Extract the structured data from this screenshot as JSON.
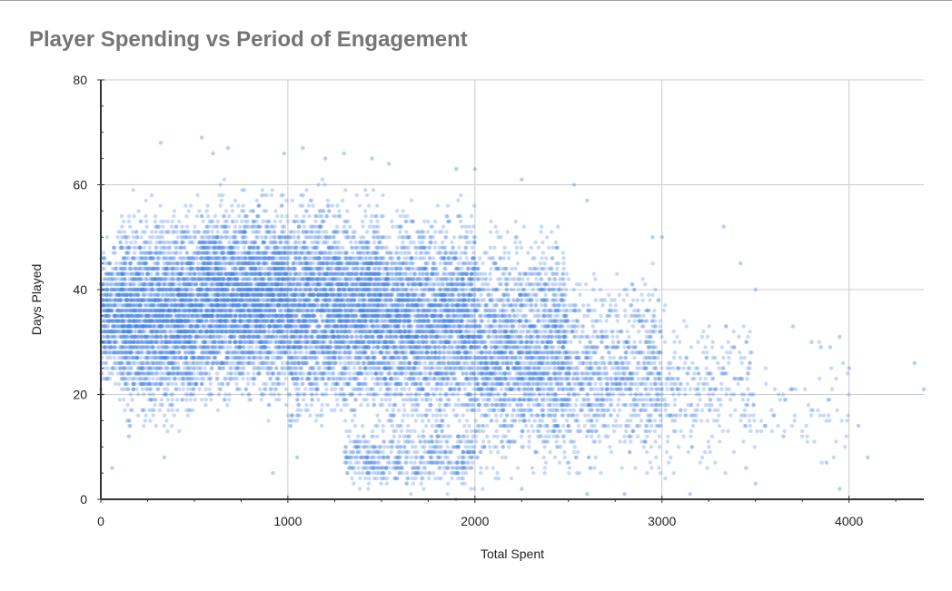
{
  "chart_data": {
    "type": "scatter",
    "title": "Player Spending vs Period of Engagement",
    "xlabel": "Total Spent",
    "ylabel": "Days Played",
    "xlim": [
      0,
      4400
    ],
    "ylim": [
      0,
      80
    ],
    "x_ticks": [
      0,
      1000,
      2000,
      3000,
      4000
    ],
    "y_ticks": [
      0,
      20,
      40,
      60,
      80
    ],
    "grid": true,
    "legend": "none",
    "colors": {
      "point": "#4a86e8",
      "grid": "#cccccc",
      "axis": "#333333",
      "title": "#757575"
    },
    "density_bands": [
      {
        "x_range": [
          0,
          100
        ],
        "y_range": [
          18,
          52
        ],
        "count": 350
      },
      {
        "x_range": [
          100,
          500
        ],
        "y_range": [
          10,
          60
        ],
        "count": 2200
      },
      {
        "x_range": [
          500,
          1000
        ],
        "y_range": [
          14,
          62
        ],
        "count": 2800
      },
      {
        "x_range": [
          1000,
          1500
        ],
        "y_range": [
          10,
          62
        ],
        "count": 2600
      },
      {
        "x_range": [
          1300,
          2000
        ],
        "y_range": [
          0,
          16
        ],
        "count": 500
      },
      {
        "x_range": [
          1500,
          2000
        ],
        "y_range": [
          8,
          60
        ],
        "count": 2300
      },
      {
        "x_range": [
          2000,
          2500
        ],
        "y_range": [
          0,
          56
        ],
        "count": 1800
      },
      {
        "x_range": [
          2500,
          3000
        ],
        "y_range": [
          0,
          48
        ],
        "count": 850
      },
      {
        "x_range": [
          3000,
          3500
        ],
        "y_range": [
          0,
          40
        ],
        "count": 280
      },
      {
        "x_range": [
          3500,
          4000
        ],
        "y_range": [
          2,
          32
        ],
        "count": 60
      }
    ],
    "outliers": [
      [
        320,
        68
      ],
      [
        540,
        69
      ],
      [
        680,
        67
      ],
      [
        600,
        66
      ],
      [
        980,
        66
      ],
      [
        1080,
        67
      ],
      [
        1200,
        65
      ],
      [
        1300,
        66
      ],
      [
        1450,
        65
      ],
      [
        1540,
        64
      ],
      [
        1900,
        63
      ],
      [
        2000,
        63
      ],
      [
        2250,
        61
      ],
      [
        2530,
        60
      ],
      [
        2600,
        57
      ],
      [
        2950,
        50
      ],
      [
        3000,
        50
      ],
      [
        3330,
        52
      ],
      [
        3420,
        45
      ],
      [
        3500,
        40
      ],
      [
        3700,
        33
      ],
      [
        3800,
        30
      ],
      [
        3850,
        29
      ],
      [
        3900,
        29
      ],
      [
        3950,
        31
      ],
      [
        4000,
        25
      ],
      [
        4050,
        14
      ],
      [
        4100,
        8
      ],
      [
        3880,
        7
      ],
      [
        4400,
        21
      ],
      [
        4350,
        26
      ],
      [
        3950,
        2
      ],
      [
        2600,
        1
      ],
      [
        1900,
        0
      ],
      [
        2250,
        2
      ],
      [
        2800,
        1
      ],
      [
        3150,
        1
      ],
      [
        3550,
        14
      ],
      [
        3650,
        12
      ],
      [
        3600,
        16
      ],
      [
        3450,
        18
      ],
      [
        3450,
        6
      ],
      [
        3500,
        3
      ],
      [
        1050,
        8
      ],
      [
        920,
        5
      ],
      [
        1310,
        9
      ],
      [
        340,
        8
      ],
      [
        150,
        12
      ],
      [
        60,
        6
      ],
      [
        20,
        28
      ],
      [
        30,
        43
      ],
      [
        10,
        37
      ]
    ]
  }
}
